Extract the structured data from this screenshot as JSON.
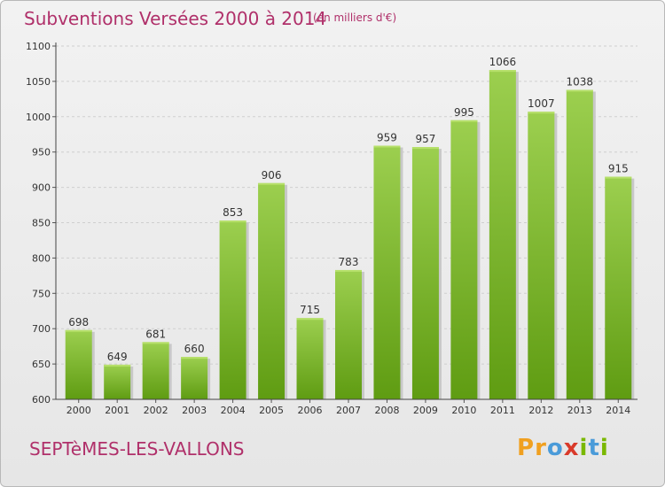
{
  "header": {
    "title": "Subventions Versées 2000 à 2014",
    "unit": "(en milliers d'€)"
  },
  "footer": {
    "commune": "SEPTèMES-LES-VALLONS",
    "logo_letters": [
      "P",
      "r",
      "o",
      "x",
      "i",
      "t",
      "i"
    ],
    "logo_colors": [
      "#f0a020",
      "#f0a020",
      "#4a9bd9",
      "#d93a2a",
      "#7ab800",
      "#4a9bd9",
      "#7ab800"
    ]
  },
  "colors": {
    "title": "#b0306a",
    "bar_top": "#9ccf4f",
    "bar_bottom": "#5f9c12"
  },
  "chart_data": {
    "type": "bar",
    "categories": [
      "2000",
      "2001",
      "2002",
      "2003",
      "2004",
      "2005",
      "2006",
      "2007",
      "2008",
      "2009",
      "2010",
      "2011",
      "2012",
      "2013",
      "2014"
    ],
    "values": [
      698,
      649,
      681,
      660,
      853,
      906,
      715,
      783,
      959,
      957,
      995,
      1066,
      1007,
      1038,
      915
    ],
    "ylim": [
      600,
      1100
    ],
    "yticks": [
      600,
      650,
      700,
      750,
      800,
      850,
      900,
      950,
      1000,
      1050,
      1100
    ],
    "grid": true,
    "xlabel": "",
    "ylabel": ""
  }
}
